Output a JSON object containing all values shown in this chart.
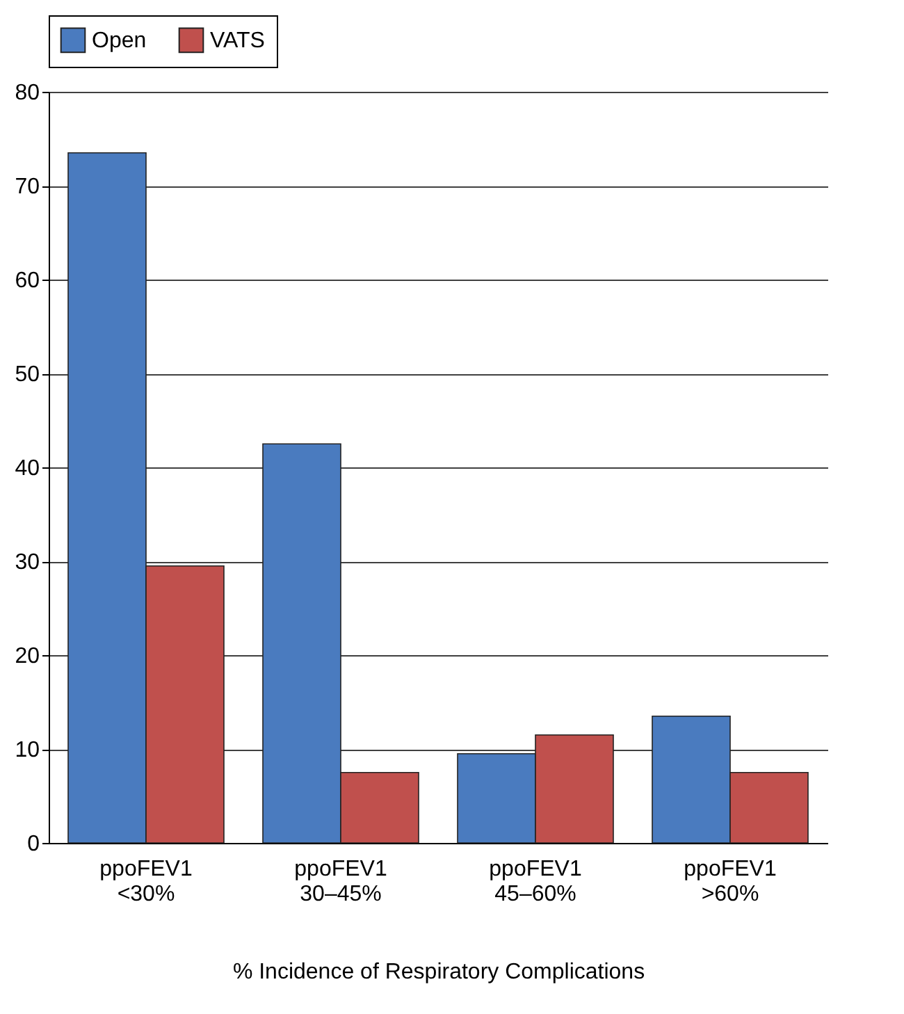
{
  "chart_data": {
    "type": "bar",
    "xlabel": "% Incidence of Respiratory Complications",
    "categories": [
      "ppoFEV1 <30%",
      "ppoFEV1 30–45%",
      "ppoFEV1 45–60%",
      "ppoFEV1 >60%"
    ],
    "series": [
      {
        "name": "Open",
        "color": "#4a7bbf",
        "values": [
          73.5,
          42.5,
          9.5,
          13.5
        ]
      },
      {
        "name": "VATS",
        "color": "#c0504d",
        "values": [
          29.5,
          7.5,
          11.5,
          7.5
        ]
      }
    ],
    "ylim": [
      0,
      80
    ],
    "yticks": [
      0,
      10,
      20,
      30,
      40,
      50,
      60,
      70,
      80
    ],
    "grid": "y",
    "legend": "top"
  }
}
